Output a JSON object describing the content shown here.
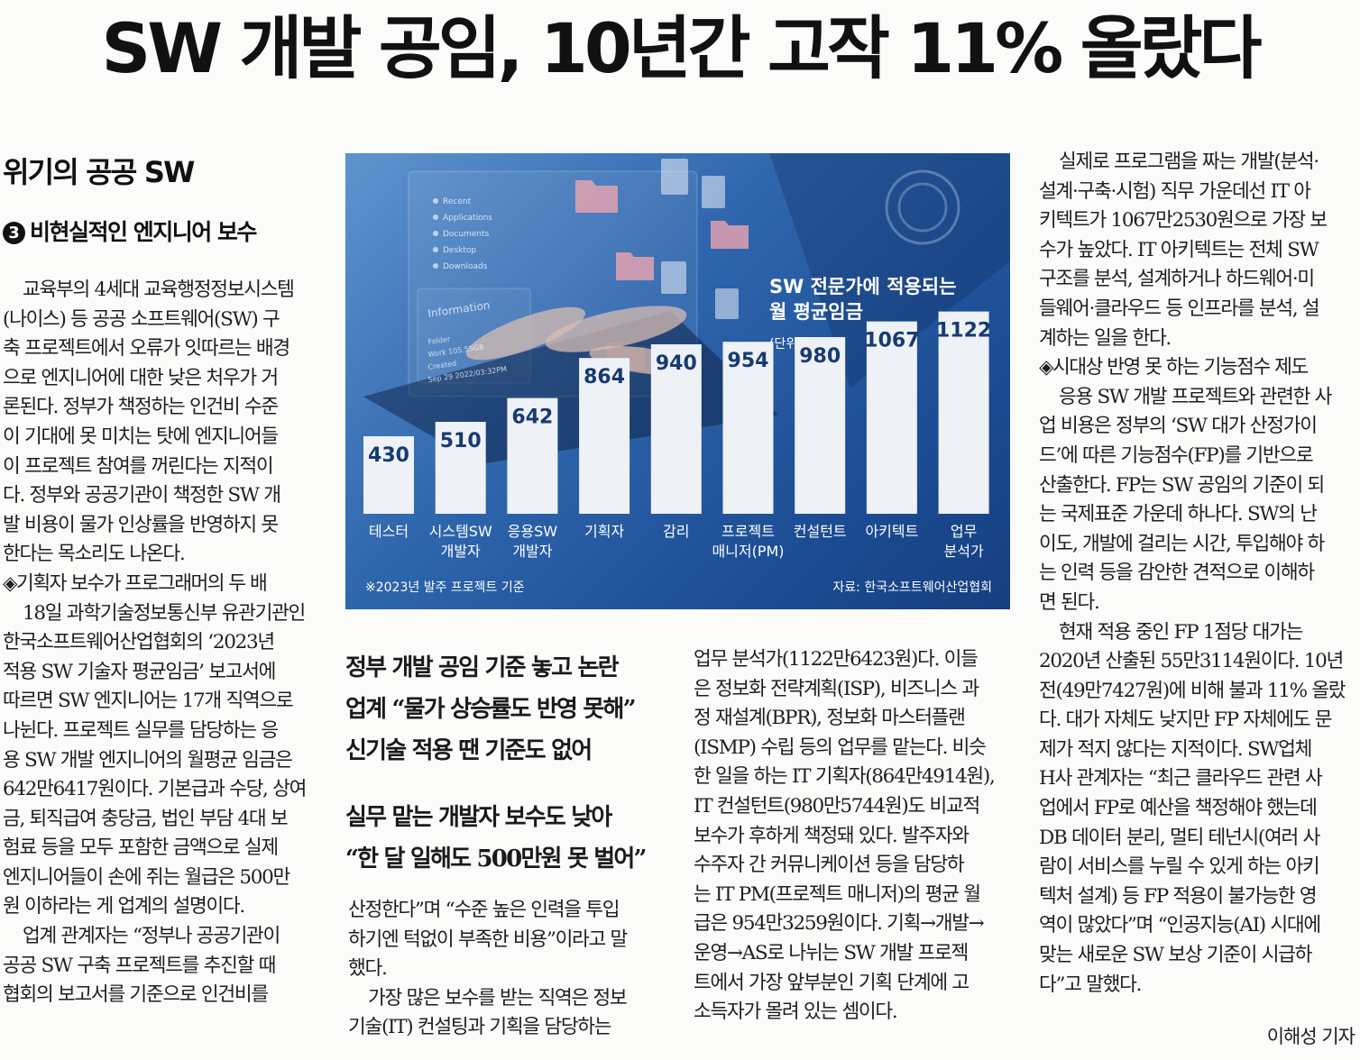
{
  "headline": "SW 개발 공임, 10년간 고작 11% 올랐다",
  "kicker": "위기의 공공 SW",
  "series": {
    "number": "3",
    "title": "비현실적인 엔지니어 보수"
  },
  "decks": [
    "정부 개발 공임 기준 놓고 논란",
    "업계 “물가 상승률도 반영 못해”",
    "신기술 적용 땐 기준도 없어",
    "실무 맡는 개발자 보수도 낮아",
    "“한 달 일해도 500만원 못 벌어”"
  ],
  "col1": [
    "교육부의 4세대 교육행정정보시스템",
    "(나이스) 등 공공 소프트웨어(SW) 구",
    "축 프로젝트에서 오류가 잇따르는 배경",
    "으로 엔지니어에 대한 낮은 처우가 거",
    "론된다. 정부가 책정하는 인건비 수준",
    "이 기대에 못 미치는 탓에 엔지니어들",
    "이 프로젝트 참여를 꺼린다는 지적이",
    "다. 정부와 공공기관이 책정한 SW 개",
    "발 비용이 물가 인상률을 반영하지 못",
    "한다는 목소리도 나온다.",
    "◈기획자 보수가 프로그래머의 두 배",
    "18일 과학기술정보통신부 유관기관인",
    "한국소프트웨어산업협회의 ‘2023년",
    "적용 SW 기술자 평균임금’ 보고서에",
    "따르면 SW 엔지니어는 17개 직역으로",
    "나뉜다. 프로젝트 실무를 담당하는 응",
    "용 SW 개발 엔지니어의 월평균 임금은",
    "642만6417원이다. 기본급과 수당, 상여",
    "금, 퇴직급여 충당금, 법인 부담 4대 보",
    "험료 등을 모두 포함한 금액으로 실제",
    "엔지니어들이 손에 쥐는 월급은 500만",
    "원 이하라는 게 업계의 설명이다.",
    "업계 관계자는 “정부나 공공기관이",
    "공공 SW 구축 프로젝트를 추진할 때",
    "협회의 보고서를 기준으로 인건비를"
  ],
  "col2": [
    "산정한다”며 “수준 높은 인력을 투입",
    "하기엔 턱없이 부족한 비용”이라고 말",
    "했다.",
    "가장 많은 보수를 받는 직역은 정보",
    "기술(IT) 컨설팅과 기획을 담당하는"
  ],
  "col3": [
    "업무 분석가(1122만6423원)다. 이들",
    "은 정보화 전략계획(ISP), 비즈니스 과",
    "정 재설계(BPR), 정보화 마스터플랜",
    "(ISMP) 수립 등의 업무를 맡는다. 비슷",
    "한 일을 하는 IT 기획자(864만4914원),",
    "IT 컨설턴트(980만5744원)도 비교적",
    "보수가 후하게 책정돼 있다. 발주자와",
    "수주자 간 커뮤니케이션 등을 담당하",
    "는 IT PM(프로젝트 매니저)의 평균 월",
    "급은 954만3259원이다. 기획→개발→",
    "운영→AS로 나뉘는 SW 개발 프로젝",
    "트에서 가장 앞부분인 기획 단계에 고",
    "소득자가 몰려 있는 셈이다."
  ],
  "col4": [
    "실제로 프로그램을 짜는 개발(분석·",
    "설계·구축·시험) 직무 가운데선 IT 아",
    "키텍트가 1067만2530원으로 가장 보",
    "수가 높았다. IT 아키텍트는 전체 SW",
    "구조를 분석, 설계하거나 하드웨어·미",
    "들웨어·클라우드 등 인프라를 분석, 설",
    "계하는 일을 한다.",
    "◈시대상 반영 못 하는 기능점수 제도",
    "응용 SW 개발 프로젝트와 관련한 사",
    "업 비용은 정부의 ‘SW 대가 산정가이",
    "드’에 따른 기능점수(FP)를 기반으로",
    "산출한다. FP는 SW 공임의 기준이 되",
    "는 국제표준 가운데 하나다. SW의 난",
    "이도, 개발에 걸리는 시간, 투입해야 하",
    "는 인력 등을 감안한 견적으로 이해하",
    "면 된다.",
    "현재 적용 중인 FP 1점당 대가는",
    "2020년 산출된 55만3114원이다. 10년",
    "전(49만7427원)에 비해 불과 11% 올랐",
    "다. 대가 자체도 낮지만 FP 자체에도 문",
    "제가 적지 않다는 지적이다. SW업체",
    "H사 관계자는 “최근 클라우드 관련 사",
    "업에서 FP로 예산을 책정해야 했는데",
    "DB 데이터 분리, 멀티 테넌시(여러 사",
    "람이 서비스를 누릴 수 있게 하는 아키",
    "텍처 설계) 등 FP 적용이 불가능한 영",
    "역이 많았다”며 “인공지능(AI) 시대에",
    "맞는 새로운 SW 보상 기준이 시급하",
    "다”고 말했다."
  ],
  "byline": "이해성 기자",
  "photo_ui": {
    "menu": [
      "Recent",
      "Applications",
      "Documents",
      "Desktop",
      "Downloads"
    ],
    "info_title": "Information",
    "info_rows": [
      "Folder",
      "Work  105.55GB",
      "Created",
      "Sep 29 2022/03:32PM"
    ]
  },
  "chart_data": {
    "type": "bar",
    "title": "SW 전문가에 적용되는 월 평균임금",
    "unit": "(단위: 만원)",
    "categories": [
      "테스터",
      "시스템SW 개발자",
      "응용SW 개발자",
      "기획자",
      "감리",
      "프로젝트 매니저(PM)",
      "컨설턴트",
      "아키텍트",
      "업무 분석가"
    ],
    "category_lines": [
      [
        "테스터"
      ],
      [
        "시스템SW",
        "개발자"
      ],
      [
        "응용SW",
        "개발자"
      ],
      [
        "기획자"
      ],
      [
        "감리"
      ],
      [
        "프로젝트",
        "매니저(PM)"
      ],
      [
        "컨설턴트"
      ],
      [
        "아키텍트"
      ],
      [
        "업무",
        "분석가"
      ]
    ],
    "values": [
      430,
      510,
      642,
      864,
      940,
      954,
      980,
      1067,
      1122
    ],
    "value_labels": [
      "430",
      "510",
      "642",
      "864",
      "940",
      "954",
      "980",
      "1067",
      "1122"
    ],
    "ylim": [
      0,
      1200
    ],
    "note": "※2023년 발주 프로젝트 기준",
    "source": "자료: 한국소프트웨어산업협회",
    "colors": {
      "bar": "#eef1f5",
      "bar_label": "#173a73",
      "text": "#ffffff"
    }
  }
}
